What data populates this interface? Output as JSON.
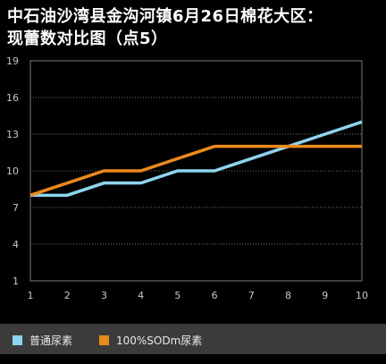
{
  "title_line1": "中石油沙湾县金沟河镇6月26日棉花大区：",
  "title_line2": "现蕾数对比图（点5）",
  "chart_data": {
    "type": "line",
    "x": [
      1,
      2,
      3,
      4,
      5,
      6,
      7,
      8,
      9,
      10
    ],
    "series": [
      {
        "name": "普通尿素",
        "color": "#8ed4ee",
        "values": [
          8,
          8,
          9,
          9,
          10,
          10,
          11,
          12,
          13,
          14
        ]
      },
      {
        "name": "100%SODm尿素",
        "color": "#ea8a1c",
        "values": [
          8,
          9,
          10,
          10,
          11,
          12,
          12,
          12,
          12,
          12
        ]
      }
    ],
    "xlabel": "",
    "ylabel": "",
    "ylim": [
      1,
      19
    ],
    "yticks": [
      1,
      4,
      7,
      10,
      13,
      16,
      19
    ],
    "xticks": [
      1,
      2,
      3,
      4,
      5,
      6,
      7,
      8,
      9,
      10
    ],
    "grid": true,
    "legend": "bottom"
  }
}
